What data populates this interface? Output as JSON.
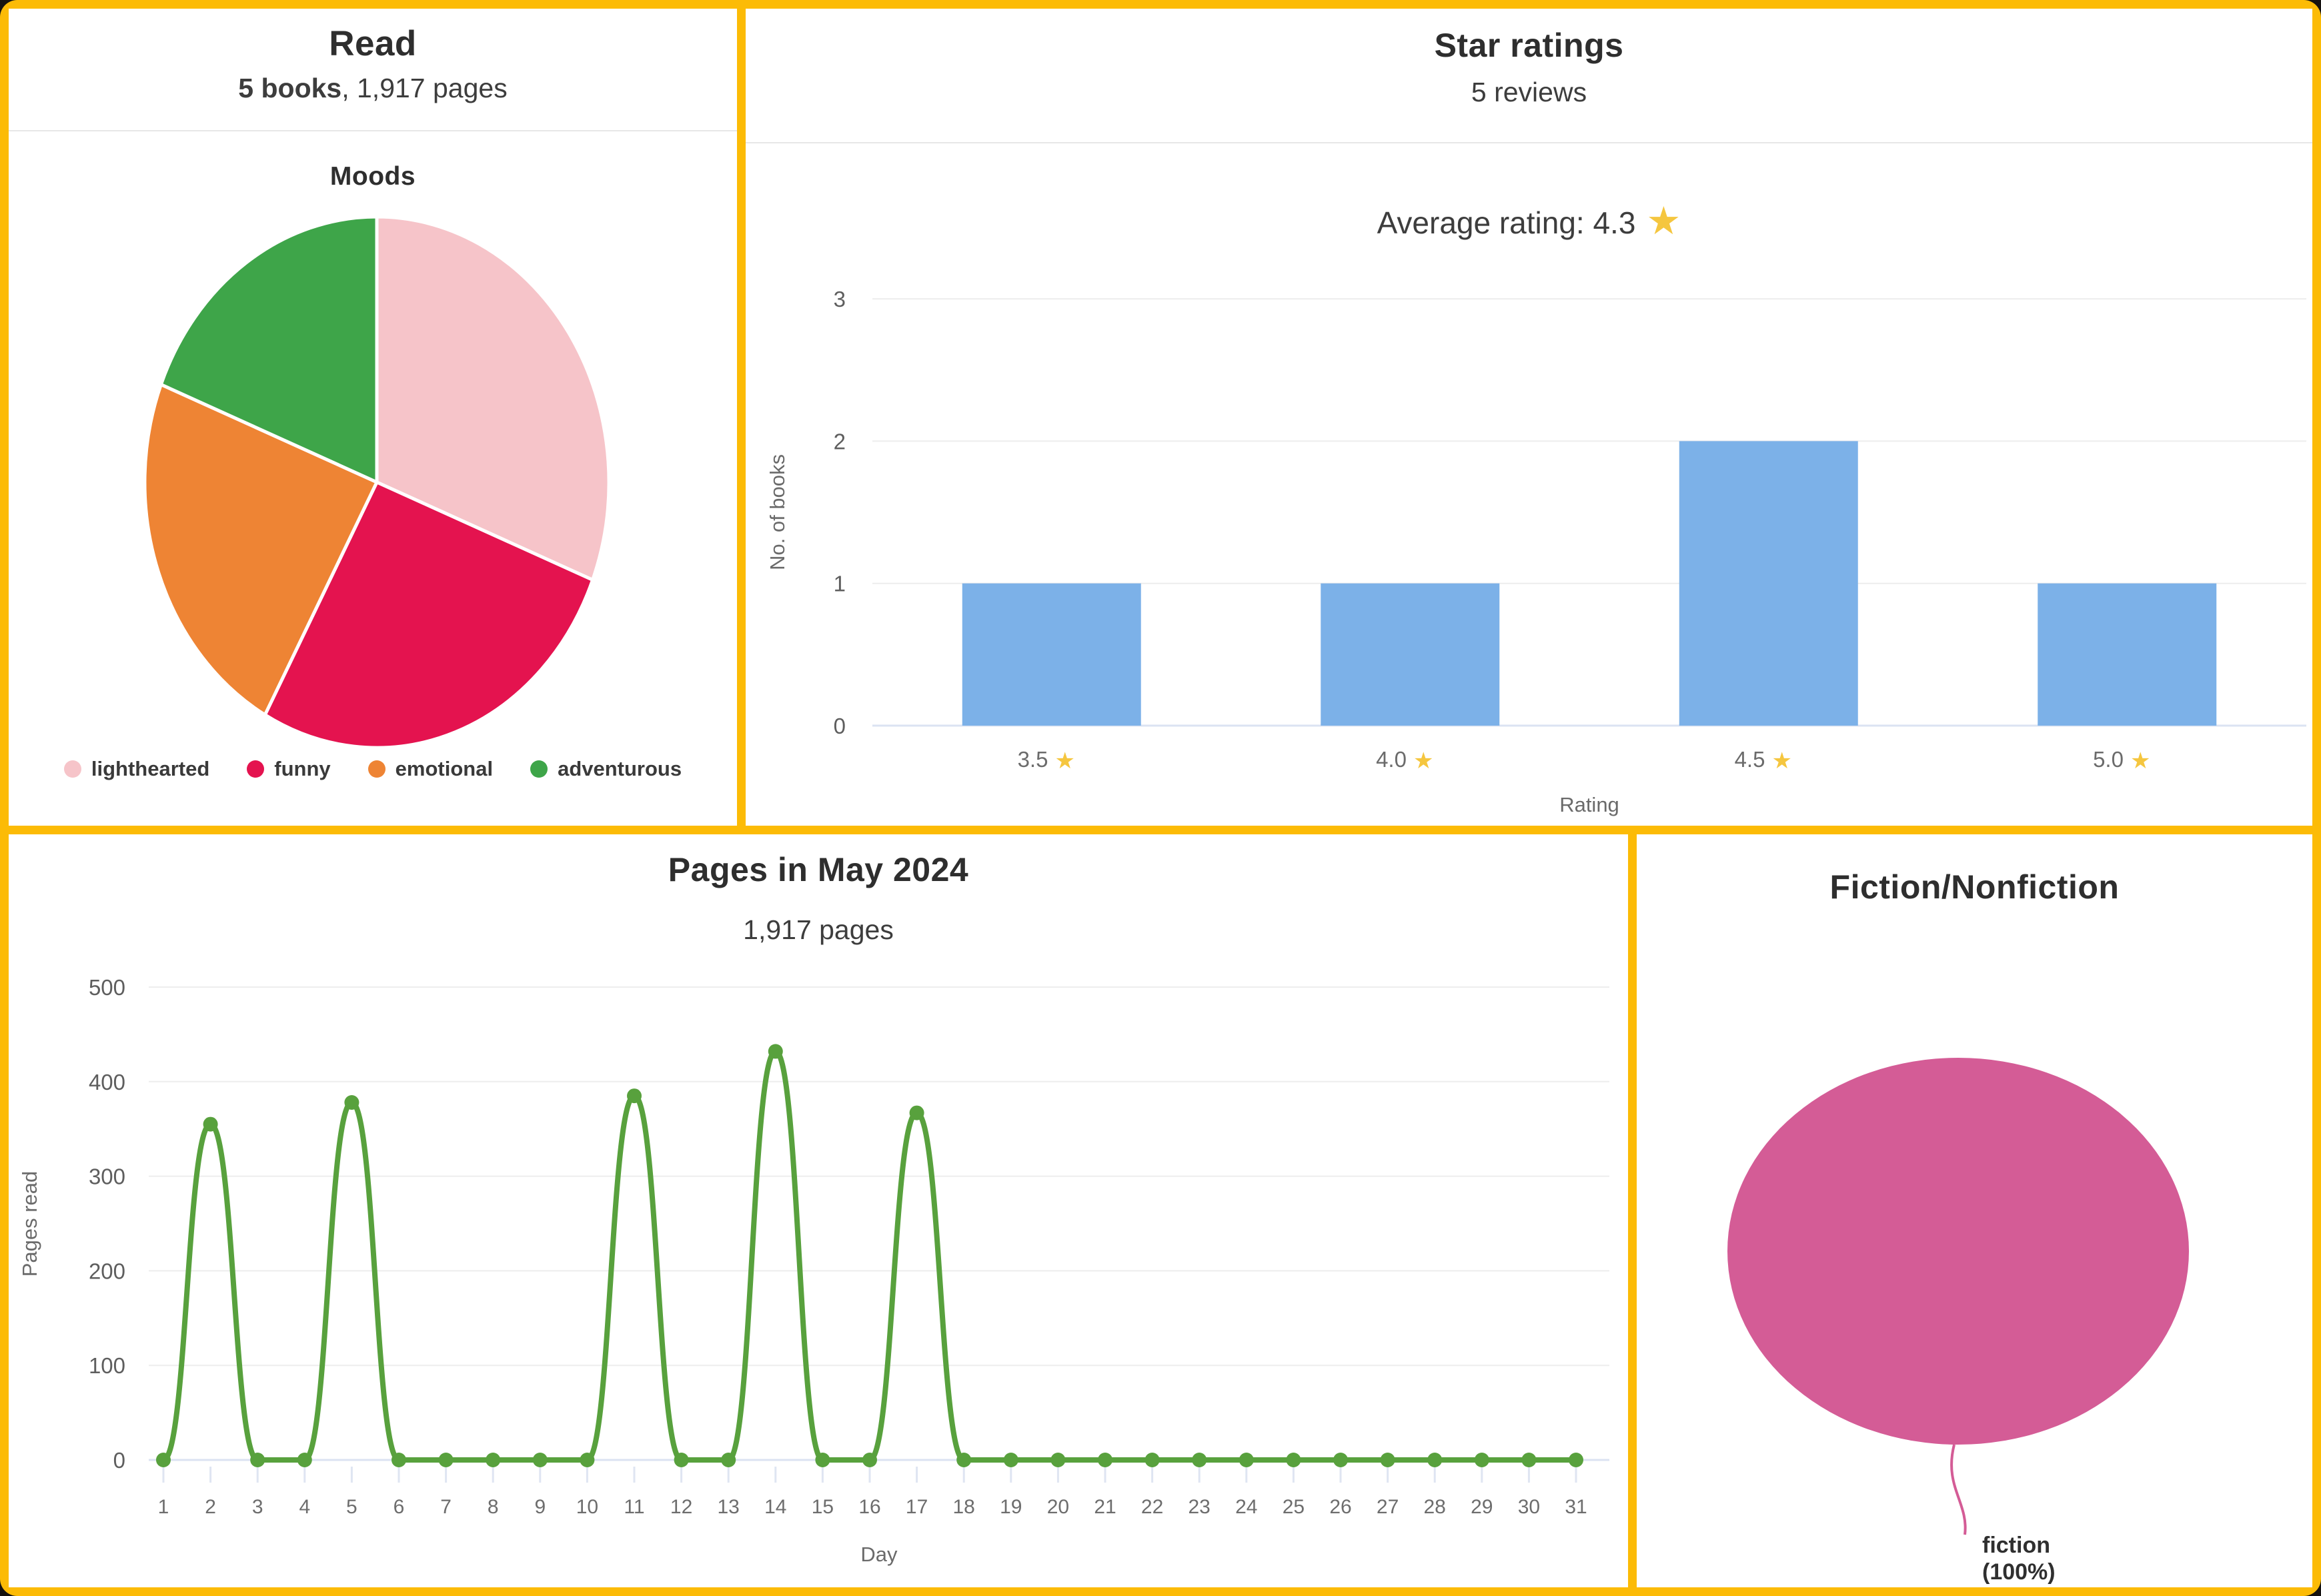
{
  "cards": {
    "read": {
      "title": "Read",
      "books_bold": "5 books",
      "pages_rest": ", 1,917 pages",
      "section_title": "Moods"
    },
    "star_ratings": {
      "title": "Star ratings",
      "subtitle": "5 reviews",
      "average_label": "Average rating: 4.3",
      "average_rating": 4.3,
      "star_icon": "★"
    },
    "pages": {
      "title": "Pages in May 2024",
      "subtitle": "1,917 pages"
    },
    "fiction": {
      "title": "Fiction/Nonfiction",
      "label_line1": "fiction",
      "label_line2": "(100%)"
    }
  },
  "colors": {
    "frame": "#fcbb06",
    "card_bg": "#ffffff",
    "title": "#2e2e2e",
    "subtitle": "#3d3d3d",
    "divider": "#e7e7e7",
    "gridline": "#ededed",
    "baseline": "#dbe3f2",
    "tick_mark": "#dfe5f2",
    "star": "#f5c63f"
  },
  "chart_data": [
    {
      "id": "moods",
      "type": "pie",
      "title": "Moods",
      "labels": [
        "lighthearted",
        "funny",
        "emotional",
        "adventurous"
      ],
      "values_percent": [
        31,
        27,
        23,
        19
      ],
      "colors": [
        "#f6c4c9",
        "#e4134f",
        "#ee8434",
        "#3ea549"
      ],
      "legend_position": "bottom"
    },
    {
      "id": "star-ratings",
      "type": "bar",
      "title": "Star ratings",
      "subtitle": "5 reviews",
      "average_rating": 4.3,
      "categories": [
        "3.5",
        "4.0",
        "4.5",
        "5.0"
      ],
      "values": [
        1,
        1,
        2,
        1
      ],
      "xlabel": "Rating",
      "ylabel": "No. of books",
      "yticks": [
        0,
        1,
        2,
        3
      ],
      "ylim": [
        0,
        3
      ],
      "bar_color": "#7cb1e8",
      "star_color": "#f5c63f",
      "category_star_suffix": "★",
      "grid": true,
      "legend_position": "none"
    },
    {
      "id": "pages-in-may",
      "type": "line",
      "title": "Pages in May 2024",
      "subtitle": "1,917 pages",
      "x": [
        1,
        2,
        3,
        4,
        5,
        6,
        7,
        8,
        9,
        10,
        11,
        12,
        13,
        14,
        15,
        16,
        17,
        18,
        19,
        20,
        21,
        22,
        23,
        24,
        25,
        26,
        27,
        28,
        29,
        30,
        31
      ],
      "values": [
        0,
        355,
        0,
        0,
        378,
        0,
        0,
        0,
        0,
        0,
        385,
        0,
        0,
        432,
        0,
        0,
        367,
        0,
        0,
        0,
        0,
        0,
        0,
        0,
        0,
        0,
        0,
        0,
        0,
        0,
        0
      ],
      "total_pages": 1917,
      "xlabel": "Day",
      "ylabel": "Pages read",
      "yticks": [
        0,
        100,
        200,
        300,
        400,
        500
      ],
      "ylim": [
        0,
        500
      ],
      "line_color": "#58a13d",
      "marker": "circle",
      "grid": true,
      "legend_position": "none"
    },
    {
      "id": "fiction-nonfiction",
      "type": "pie",
      "title": "Fiction/Nonfiction",
      "labels": [
        "fiction"
      ],
      "values_percent": [
        100
      ],
      "colors": [
        "#d45c96"
      ],
      "annotation": "fiction (100%)",
      "legend_position": "none"
    }
  ]
}
